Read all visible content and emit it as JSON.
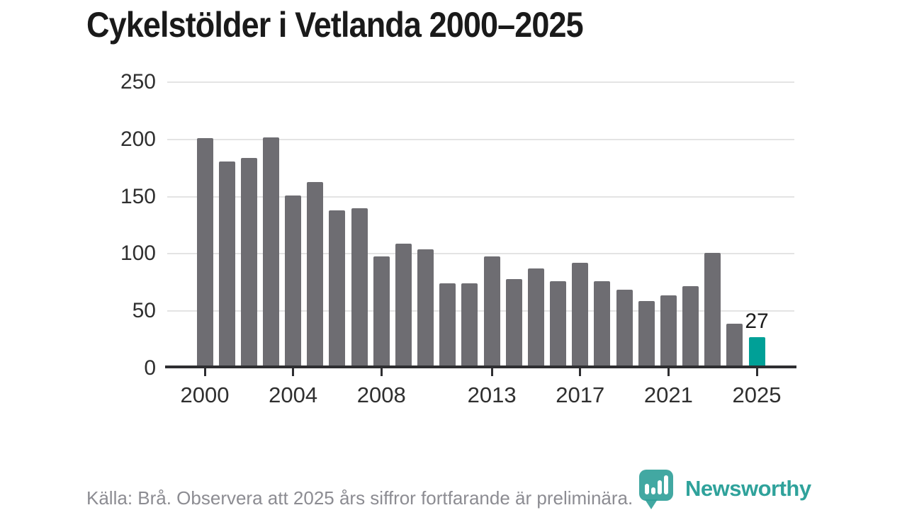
{
  "chart_data": {
    "type": "bar",
    "title": "Cykelstölder i Vetlanda 2000–2025",
    "x": [
      2000,
      2001,
      2002,
      2003,
      2004,
      2005,
      2006,
      2007,
      2008,
      2009,
      2010,
      2011,
      2012,
      2013,
      2014,
      2015,
      2016,
      2017,
      2018,
      2019,
      2020,
      2021,
      2022,
      2023,
      2024,
      2025
    ],
    "values": [
      201,
      181,
      184,
      202,
      151,
      163,
      138,
      140,
      98,
      109,
      104,
      74,
      74,
      98,
      78,
      87,
      76,
      92,
      76,
      69,
      59,
      64,
      72,
      101,
      39,
      27
    ],
    "xlabel": "",
    "ylabel": "",
    "ylim": [
      0,
      250
    ],
    "yticks": [
      0,
      50,
      100,
      150,
      200,
      250
    ],
    "xticks": [
      2000,
      2004,
      2008,
      2013,
      2017,
      2021,
      2025
    ],
    "grid": "horizontal",
    "legend": "none",
    "highlight_year": 2025,
    "highlight_value_label": "27",
    "bar_color": "#6e6d72",
    "highlight_color": "#00a097",
    "gridline_color": "#e4e4e4",
    "axis_color": "#2e2e31",
    "tick_label_color": "#2f2f2f"
  },
  "footer": {
    "source": "Källa: Brå. Observera att 2025 års siffror fortfarande är preliminära.",
    "brand": "Newsworthy",
    "brand_color": "#2fa29b"
  }
}
